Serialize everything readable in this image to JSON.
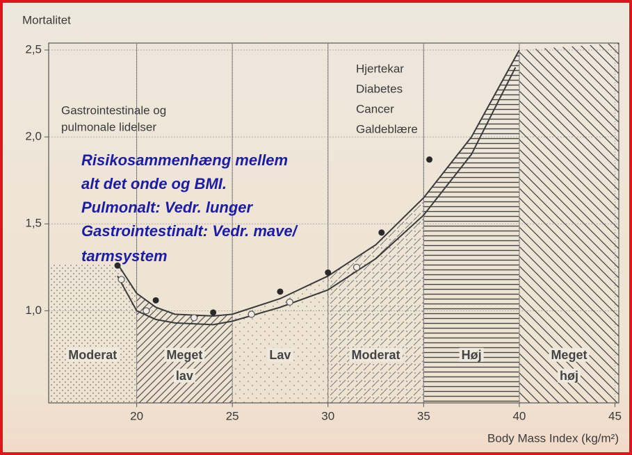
{
  "chart_data": {
    "type": "line",
    "ylabel": "Mortalitet",
    "xlabel": "Body Mass Index (kg/m²)",
    "xlim": [
      15.4,
      45.2
    ],
    "xticks": [
      20,
      25,
      30,
      35,
      40,
      45
    ],
    "ylim": [
      0.47,
      2.54
    ],
    "yticks": [
      {
        "value": 1.0,
        "label": "1,0"
      },
      {
        "value": 1.5,
        "label": "1,5"
      },
      {
        "value": 2.0,
        "label": "2,0"
      },
      {
        "value": 2.5,
        "label": "2,5"
      }
    ],
    "grid": true,
    "zone_edges": [
      20,
      25,
      30,
      35,
      40
    ],
    "zones": [
      [
        "Moderat"
      ],
      [
        "Meget",
        "lav"
      ],
      [
        "Lav"
      ],
      [
        "Moderat"
      ],
      [
        "Høj"
      ],
      [
        "Meget",
        "høj"
      ]
    ],
    "series": [
      {
        "marker": "line",
        "color": "#3a3a3a",
        "x": [
          19,
          20,
          21,
          22,
          24,
          25,
          27.5,
          30,
          32.5,
          35,
          37.5,
          40
        ],
        "values": [
          1.27,
          1.1,
          1.02,
          0.98,
          0.97,
          0.98,
          1.07,
          1.2,
          1.38,
          1.65,
          2.0,
          2.5
        ]
      },
      {
        "marker": "line",
        "color": "#3a3a3a",
        "x": [
          19,
          20,
          21,
          22,
          24,
          25,
          27.5,
          30,
          32.5,
          35,
          37.5,
          39.8
        ],
        "values": [
          1.2,
          1.0,
          0.95,
          0.93,
          0.92,
          0.94,
          1.02,
          1.12,
          1.3,
          1.55,
          1.9,
          2.4
        ]
      },
      {
        "marker": "filled",
        "color": "#2a2a2a",
        "x": [
          19,
          21,
          24,
          27.5,
          30,
          32.8,
          35.3
        ],
        "values": [
          1.26,
          1.06,
          0.99,
          1.11,
          1.22,
          1.45,
          1.87
        ]
      },
      {
        "marker": "open",
        "color": "#555555",
        "x": [
          19.2,
          20.5,
          23,
          26,
          28,
          31.5
        ],
        "values": [
          1.18,
          1.0,
          0.96,
          0.98,
          1.05,
          1.25
        ]
      }
    ],
    "annotations": {
      "left": [
        "Gastrointestinale og",
        "pulmonale lidelser"
      ],
      "right": [
        "Hjertekar",
        "Diabetes",
        "Cancer",
        "Galdeblære"
      ],
      "overlay": [
        "Risikosammenhæng mellem",
        "alt det onde og BMI.",
        "Pulmonalt: Vedr. lunger",
        "Gastrointestinalt: Vedr. mave/",
        "tarmsystem"
      ]
    }
  }
}
